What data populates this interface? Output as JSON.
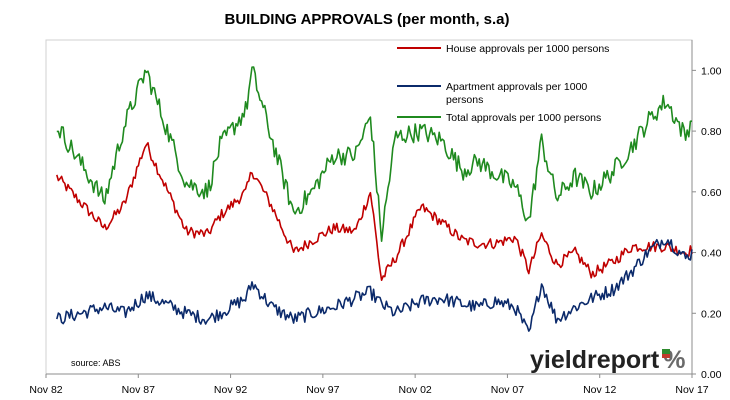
{
  "chart_data": {
    "type": "line",
    "title": "BUILDING APPROVALS (per month, s.a)",
    "x_ticks": [
      "Nov 82",
      "Nov 87",
      "Nov 92",
      "Nov 97",
      "Nov 02",
      "Nov 07",
      "Nov 12",
      "Nov 17"
    ],
    "y_ticks": [
      "0.00",
      "0.20",
      "0.40",
      "0.60",
      "0.80",
      "1.00"
    ],
    "ylim": [
      0,
      1.1
    ],
    "xlim": [
      "1982-11",
      "2017-11"
    ],
    "y_axis_side": "right",
    "grid": false,
    "legend_position": "top-right",
    "source": "source: ABS",
    "logo_text": "yieldreport",
    "logo_symbol": "%",
    "x_key_dates": [
      "1983-06",
      "1986-01",
      "1987-02",
      "1988-04",
      "1990-06",
      "1991-08",
      "1992-04",
      "1993-09",
      "1994-01",
      "1995-02",
      "1996-04",
      "1997-04",
      "1998-06",
      "1999-08",
      "2000-06",
      "2001-01",
      "2001-10",
      "2003-03",
      "2004-04",
      "2005-06",
      "2006-04",
      "2007-03",
      "2008-04",
      "2009-01",
      "2009-09",
      "2010-07",
      "2011-07",
      "2012-06",
      "2013-08",
      "2014-08",
      "2015-06",
      "2016-06",
      "2017-07",
      "2017-11"
    ],
    "series": [
      {
        "name": "House approvals per 1000 persons",
        "color": "#c00000",
        "values": [
          0.65,
          0.48,
          0.56,
          0.76,
          0.47,
          0.46,
          0.52,
          0.6,
          0.67,
          0.55,
          0.4,
          0.44,
          0.48,
          0.47,
          0.6,
          0.31,
          0.38,
          0.55,
          0.5,
          0.44,
          0.43,
          0.43,
          0.45,
          0.34,
          0.46,
          0.36,
          0.4,
          0.33,
          0.37,
          0.42,
          0.42,
          0.42,
          0.4,
          0.41
        ]
      },
      {
        "name": "Apartment approvals per 1000 persons",
        "color": "#0b2a6b",
        "values": [
          0.18,
          0.22,
          0.2,
          0.26,
          0.2,
          0.18,
          0.2,
          0.25,
          0.3,
          0.22,
          0.18,
          0.2,
          0.22,
          0.25,
          0.27,
          0.23,
          0.2,
          0.24,
          0.25,
          0.23,
          0.22,
          0.24,
          0.22,
          0.13,
          0.3,
          0.18,
          0.22,
          0.25,
          0.28,
          0.34,
          0.4,
          0.45,
          0.38,
          0.4
        ]
      },
      {
        "name": "Total approvals per 1000 persons",
        "color": "#1f8a1f",
        "values": [
          0.82,
          0.57,
          0.82,
          1.0,
          0.63,
          0.6,
          0.75,
          0.87,
          1.0,
          0.77,
          0.53,
          0.6,
          0.72,
          0.72,
          0.85,
          0.45,
          0.78,
          0.8,
          0.77,
          0.67,
          0.7,
          0.66,
          0.62,
          0.5,
          0.77,
          0.58,
          0.65,
          0.6,
          0.67,
          0.75,
          0.83,
          0.9,
          0.78,
          0.85
        ]
      }
    ]
  }
}
